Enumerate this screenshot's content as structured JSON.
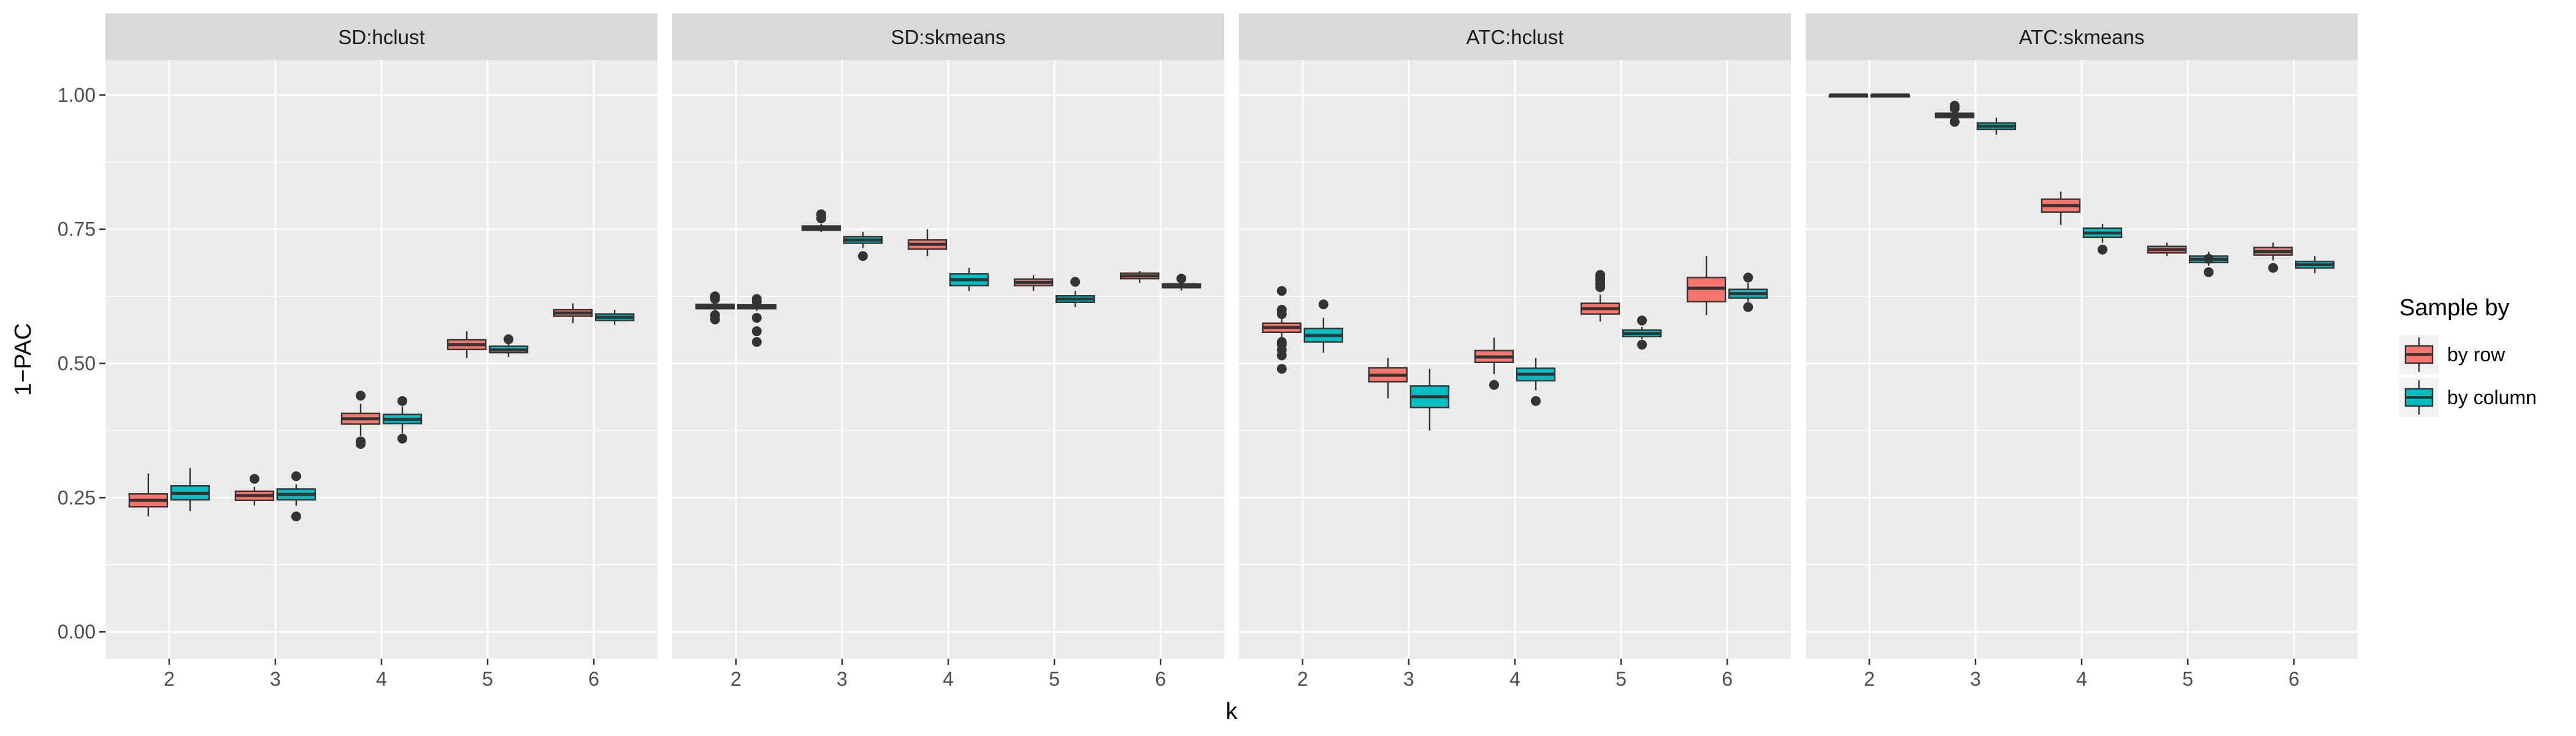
{
  "chart_data": {
    "type": "boxplot",
    "xlabel": "k",
    "ylabel": "1−PAC",
    "ylim": [
      -0.05,
      1.065
    ],
    "yticks": [
      0.0,
      0.25,
      0.5,
      0.75,
      1.0
    ],
    "ytick_labels": [
      "0.00",
      "0.25",
      "0.50",
      "0.75",
      "1.00"
    ],
    "categories": [
      "2",
      "3",
      "4",
      "5",
      "6"
    ],
    "legend": {
      "title": "Sample by",
      "position": "right",
      "entries": [
        {
          "label": "by row",
          "color": "#F8766D"
        },
        {
          "label": "by column",
          "color": "#00BFC4"
        }
      ]
    },
    "panels": [
      {
        "title": "SD:hclust",
        "groups": [
          {
            "k": "2",
            "by_row": {
              "min": 0.215,
              "q1": 0.233,
              "median": 0.245,
              "q3": 0.257,
              "max": 0.295,
              "outliers": []
            },
            "by_column": {
              "min": 0.225,
              "q1": 0.246,
              "median": 0.258,
              "q3": 0.272,
              "max": 0.305,
              "outliers": []
            }
          },
          {
            "k": "3",
            "by_row": {
              "min": 0.235,
              "q1": 0.245,
              "median": 0.254,
              "q3": 0.262,
              "max": 0.27,
              "outliers": [
                0.285
              ]
            },
            "by_column": {
              "min": 0.235,
              "q1": 0.246,
              "median": 0.256,
              "q3": 0.266,
              "max": 0.275,
              "outliers": [
                0.29,
                0.215
              ]
            }
          },
          {
            "k": "4",
            "by_row": {
              "min": 0.365,
              "q1": 0.387,
              "median": 0.397,
              "q3": 0.407,
              "max": 0.425,
              "outliers": [
                0.44,
                0.355,
                0.35
              ]
            },
            "by_column": {
              "min": 0.37,
              "q1": 0.388,
              "median": 0.396,
              "q3": 0.405,
              "max": 0.42,
              "outliers": [
                0.43,
                0.36
              ]
            }
          },
          {
            "k": "5",
            "by_row": {
              "min": 0.51,
              "q1": 0.526,
              "median": 0.535,
              "q3": 0.544,
              "max": 0.56,
              "outliers": []
            },
            "by_column": {
              "min": 0.512,
              "q1": 0.52,
              "median": 0.525,
              "q3": 0.532,
              "max": 0.54,
              "outliers": [
                0.545
              ]
            }
          },
          {
            "k": "6",
            "by_row": {
              "min": 0.575,
              "q1": 0.588,
              "median": 0.594,
              "q3": 0.6,
              "max": 0.612,
              "outliers": []
            },
            "by_column": {
              "min": 0.572,
              "q1": 0.58,
              "median": 0.586,
              "q3": 0.592,
              "max": 0.6,
              "outliers": []
            }
          }
        ]
      },
      {
        "title": "SD:skmeans",
        "groups": [
          {
            "k": "2",
            "by_row": {
              "min": 0.598,
              "q1": 0.602,
              "median": 0.606,
              "q3": 0.61,
              "max": 0.615,
              "outliers": [
                0.62,
                0.625,
                0.59,
                0.582
              ]
            },
            "by_column": {
              "min": 0.598,
              "q1": 0.602,
              "median": 0.605,
              "q3": 0.609,
              "max": 0.612,
              "outliers": [
                0.615,
                0.62,
                0.585,
                0.56,
                0.54
              ]
            }
          },
          {
            "k": "3",
            "by_row": {
              "min": 0.745,
              "q1": 0.748,
              "median": 0.752,
              "q3": 0.756,
              "max": 0.76,
              "outliers": [
                0.77,
                0.778
              ]
            },
            "by_column": {
              "min": 0.715,
              "q1": 0.724,
              "median": 0.73,
              "q3": 0.736,
              "max": 0.745,
              "outliers": [
                0.7
              ]
            }
          },
          {
            "k": "4",
            "by_row": {
              "min": 0.7,
              "q1": 0.713,
              "median": 0.722,
              "q3": 0.73,
              "max": 0.75,
              "outliers": []
            },
            "by_column": {
              "min": 0.635,
              "q1": 0.645,
              "median": 0.656,
              "q3": 0.667,
              "max": 0.678,
              "outliers": []
            }
          },
          {
            "k": "5",
            "by_row": {
              "min": 0.635,
              "q1": 0.645,
              "median": 0.651,
              "q3": 0.657,
              "max": 0.665,
              "outliers": []
            },
            "by_column": {
              "min": 0.605,
              "q1": 0.614,
              "median": 0.62,
              "q3": 0.626,
              "max": 0.635,
              "outliers": [
                0.652
              ]
            }
          },
          {
            "k": "6",
            "by_row": {
              "min": 0.65,
              "q1": 0.658,
              "median": 0.663,
              "q3": 0.668,
              "max": 0.672,
              "outliers": []
            },
            "by_column": {
              "min": 0.636,
              "q1": 0.641,
              "median": 0.644,
              "q3": 0.648,
              "max": 0.652,
              "outliers": [
                0.658
              ]
            }
          }
        ]
      },
      {
        "title": "ATC:hclust",
        "groups": [
          {
            "k": "2",
            "by_row": {
              "min": 0.545,
              "q1": 0.558,
              "median": 0.567,
              "q3": 0.575,
              "max": 0.59,
              "outliers": [
                0.635,
                0.6,
                0.592,
                0.54,
                0.535,
                0.525,
                0.515,
                0.49
              ]
            },
            "by_column": {
              "min": 0.52,
              "q1": 0.54,
              "median": 0.552,
              "q3": 0.565,
              "max": 0.585,
              "outliers": [
                0.61
              ]
            }
          },
          {
            "k": "3",
            "by_row": {
              "min": 0.435,
              "q1": 0.466,
              "median": 0.478,
              "q3": 0.492,
              "max": 0.51,
              "outliers": []
            },
            "by_column": {
              "min": 0.375,
              "q1": 0.418,
              "median": 0.438,
              "q3": 0.458,
              "max": 0.49,
              "outliers": []
            }
          },
          {
            "k": "4",
            "by_row": {
              "min": 0.48,
              "q1": 0.502,
              "median": 0.512,
              "q3": 0.524,
              "max": 0.548,
              "outliers": [
                0.46
              ]
            },
            "by_column": {
              "min": 0.45,
              "q1": 0.468,
              "median": 0.48,
              "q3": 0.491,
              "max": 0.51,
              "outliers": [
                0.43
              ]
            }
          },
          {
            "k": "5",
            "by_row": {
              "min": 0.578,
              "q1": 0.592,
              "median": 0.602,
              "q3": 0.612,
              "max": 0.628,
              "outliers": [
                0.665,
                0.66,
                0.655,
                0.648,
                0.642
              ]
            },
            "by_column": {
              "min": 0.545,
              "q1": 0.55,
              "median": 0.556,
              "q3": 0.562,
              "max": 0.568,
              "outliers": [
                0.58,
                0.535
              ]
            }
          },
          {
            "k": "6",
            "by_row": {
              "min": 0.59,
              "q1": 0.615,
              "median": 0.64,
              "q3": 0.66,
              "max": 0.7,
              "outliers": []
            },
            "by_column": {
              "min": 0.615,
              "q1": 0.622,
              "median": 0.63,
              "q3": 0.638,
              "max": 0.65,
              "outliers": [
                0.66,
                0.605
              ]
            }
          }
        ]
      },
      {
        "title": "ATC:skmeans",
        "groups": [
          {
            "k": "2",
            "by_row": {
              "min": 0.999,
              "q1": 0.9995,
              "median": 1.0,
              "q3": 1.0,
              "max": 1.0,
              "outliers": []
            },
            "by_column": {
              "min": 0.999,
              "q1": 0.9995,
              "median": 1.0,
              "q3": 1.0,
              "max": 1.0,
              "outliers": []
            }
          },
          {
            "k": "3",
            "by_row": {
              "min": 0.955,
              "q1": 0.958,
              "median": 0.962,
              "q3": 0.966,
              "max": 0.97,
              "outliers": [
                0.98,
                0.975,
                0.95
              ]
            },
            "by_column": {
              "min": 0.926,
              "q1": 0.936,
              "median": 0.942,
              "q3": 0.948,
              "max": 0.958,
              "outliers": []
            }
          },
          {
            "k": "4",
            "by_row": {
              "min": 0.758,
              "q1": 0.782,
              "median": 0.794,
              "q3": 0.806,
              "max": 0.82,
              "outliers": []
            },
            "by_column": {
              "min": 0.725,
              "q1": 0.735,
              "median": 0.743,
              "q3": 0.752,
              "max": 0.76,
              "outliers": [
                0.712
              ]
            }
          },
          {
            "k": "5",
            "by_row": {
              "min": 0.7,
              "q1": 0.706,
              "median": 0.712,
              "q3": 0.718,
              "max": 0.725,
              "outliers": []
            },
            "by_column": {
              "min": 0.682,
              "q1": 0.688,
              "median": 0.694,
              "q3": 0.7,
              "max": 0.708,
              "outliers": [
                0.695,
                0.67
              ]
            }
          },
          {
            "k": "6",
            "by_row": {
              "min": 0.692,
              "q1": 0.702,
              "median": 0.708,
              "q3": 0.716,
              "max": 0.725,
              "outliers": [
                0.678
              ]
            },
            "by_column": {
              "min": 0.668,
              "q1": 0.678,
              "median": 0.684,
              "q3": 0.69,
              "max": 0.7,
              "outliers": []
            }
          }
        ]
      }
    ]
  }
}
